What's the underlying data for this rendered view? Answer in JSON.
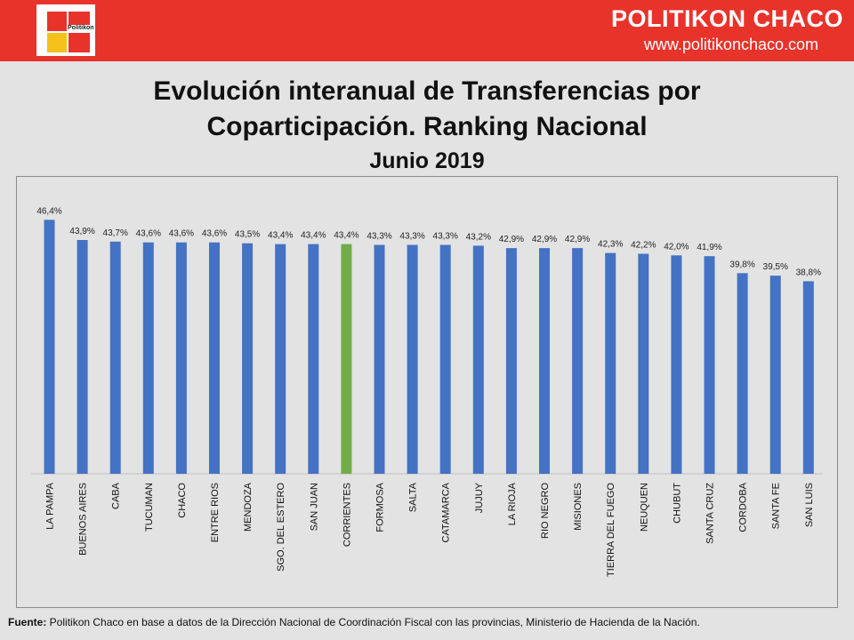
{
  "header": {
    "logo_text": "Politikon",
    "brand_name": "POLITIKON CHACO",
    "brand_url": "www.politikonchaco.com"
  },
  "title": {
    "line1": "Evolución interanual de Transferencias por",
    "line2": "Coparticipación. Ranking Nacional",
    "subtitle": "Junio 2019"
  },
  "footer": {
    "label": "Fuente:",
    "text": " Politikon Chaco en base a datos de la Dirección Nacional de Coordinación Fiscal con las provincias,  Ministerio de Hacienda de la Nación."
  },
  "colors": {
    "bar_default": "#4472c4",
    "bar_highlight": "#70ad47",
    "brand_red": "#e8332b"
  },
  "chart_data": {
    "type": "bar",
    "title": "Evolución interanual de Transferencias por Coparticipación. Ranking Nacional",
    "subtitle": "Junio 2019",
    "categories": [
      "LA PAMPA",
      "BUENOS AIRES",
      "CABA",
      "TUCUMAN",
      "CHACO",
      "ENTRE RIOS",
      "MENDOZA",
      "SGO. DEL ESTERO",
      "SAN JUAN",
      "CORRIENTES",
      "FORMOSA",
      "SALTA",
      "CATAMARCA",
      "JUJUY",
      "LA RIOJA",
      "RIO NEGRO",
      "MISIONES",
      "TIERRA DEL FUEGO",
      "NEUQUEN",
      "CHUBUT",
      "SANTA CRUZ",
      "CORDOBA",
      "SANTA FE",
      "SAN LUIS"
    ],
    "values": [
      46.4,
      43.9,
      43.7,
      43.6,
      43.6,
      43.6,
      43.5,
      43.4,
      43.4,
      43.4,
      43.3,
      43.3,
      43.3,
      43.2,
      42.9,
      42.9,
      42.9,
      42.3,
      42.2,
      42.0,
      41.9,
      39.8,
      39.5,
      38.8
    ],
    "labels": [
      "46,4%",
      "43,9%",
      "43,7%",
      "43,6%",
      "43,6%",
      "43,6%",
      "43,5%",
      "43,4%",
      "43,4%",
      "43,4%",
      "43,3%",
      "43,3%",
      "43,3%",
      "43,2%",
      "42,9%",
      "42,9%",
      "42,9%",
      "42,3%",
      "42,2%",
      "42,0%",
      "41,9%",
      "39,8%",
      "39,5%",
      "38,8%"
    ],
    "highlight": "CORRIENTES",
    "ylim": [
      15,
      47
    ],
    "grid": false,
    "legend": "none",
    "xlabel": "",
    "ylabel": ""
  }
}
